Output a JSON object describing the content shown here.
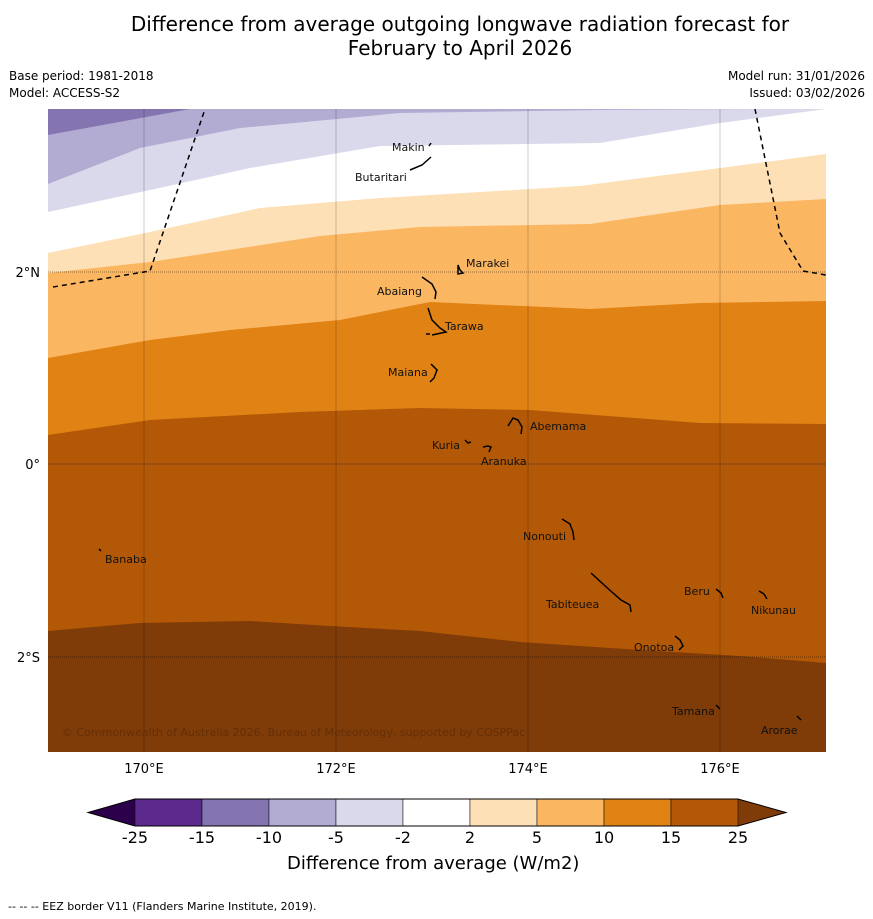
{
  "title": {
    "line1": "Difference from average outgoing longwave radiation forecast for",
    "line2": "February to April 2026"
  },
  "meta": {
    "base_period": "Base period: 1981-2018",
    "model": "Model: ACCESS-S2",
    "model_run": "Model run: 31/01/2026",
    "issued": "Issued: 03/02/2026"
  },
  "axes": {
    "lon_labels": [
      "170°E",
      "172°E",
      "174°E",
      "176°E"
    ],
    "lat_labels": [
      "2°N",
      "0°",
      "2°S"
    ]
  },
  "places": [
    {
      "name": "Makin"
    },
    {
      "name": "Butaritari"
    },
    {
      "name": "Marakei"
    },
    {
      "name": "Abaiang"
    },
    {
      "name": "Tarawa"
    },
    {
      "name": "Maiana"
    },
    {
      "name": "Abemama"
    },
    {
      "name": "Kuria"
    },
    {
      "name": "Aranuka"
    },
    {
      "name": "Banaba"
    },
    {
      "name": "Nonouti"
    },
    {
      "name": "Beru"
    },
    {
      "name": "Tabiteuea"
    },
    {
      "name": "Nikunau"
    },
    {
      "name": "Onotoa"
    },
    {
      "name": "Tamana"
    },
    {
      "name": "Arorae"
    }
  ],
  "copyright": "© Commonwealth of Australia 2026, Bureau of Meteorology, supported by COSPPac",
  "colorbar": {
    "title": "Difference from average (W/m2)",
    "labels": [
      "-25",
      "-15",
      "-10",
      "-5",
      "-2",
      "2",
      "5",
      "10",
      "15",
      "25"
    ],
    "colors": [
      "#5b2a8c",
      "#8475b0",
      "#b2abd2",
      "#d9d9eb",
      "#ffffff",
      "#fee0b6",
      "#fbb661",
      "#e08214",
      "#b35806",
      "#7f3b08"
    ],
    "under_color": "#2d004b",
    "over_color": "#7f3b08"
  },
  "footnote": "--  --  -- EEZ border V11 (Flanders Marine Institute, 2019)."
}
